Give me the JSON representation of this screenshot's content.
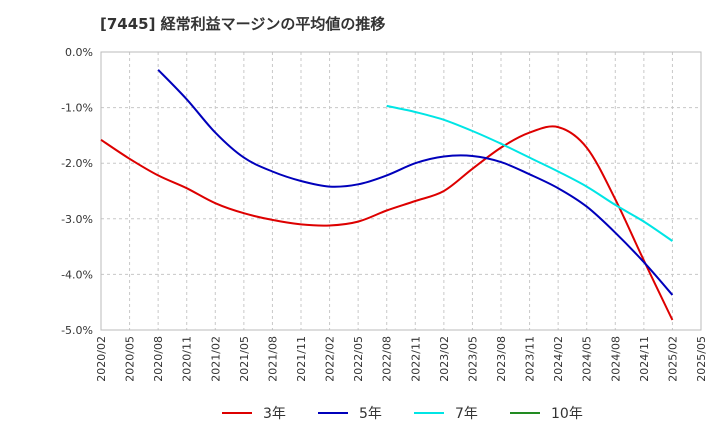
{
  "chart_data": {
    "type": "line",
    "title": "[7445]  経常利益マージンの平均値の推移",
    "xlabel": "",
    "ylabel": "",
    "x_ticks": [
      "2020/02",
      "2020/05",
      "2020/08",
      "2020/11",
      "2021/02",
      "2021/05",
      "2021/08",
      "2021/11",
      "2022/02",
      "2022/05",
      "2022/08",
      "2022/11",
      "2023/02",
      "2023/05",
      "2023/08",
      "2023/11",
      "2024/02",
      "2024/05",
      "2024/08",
      "2024/11",
      "2025/02",
      "2025/05"
    ],
    "y_ticks": [
      "0.0%",
      "-1.0%",
      "-2.0%",
      "-3.0%",
      "-4.0%",
      "-5.0%"
    ],
    "ylim": [
      -5.0,
      0.0
    ],
    "grid": "horizontal dashed",
    "legend_position": "bottom",
    "series": [
      {
        "name": "3年",
        "color": "#dd0000",
        "points": [
          [
            0,
            -1.58
          ],
          [
            1,
            -1.92
          ],
          [
            2,
            -2.22
          ],
          [
            3,
            -2.45
          ],
          [
            4,
            -2.72
          ],
          [
            5,
            -2.9
          ],
          [
            6,
            -3.02
          ],
          [
            7,
            -3.1
          ],
          [
            8,
            -3.12
          ],
          [
            9,
            -3.05
          ],
          [
            10,
            -2.85
          ],
          [
            11,
            -2.68
          ],
          [
            12,
            -2.5
          ],
          [
            13,
            -2.1
          ],
          [
            14,
            -1.72
          ],
          [
            15,
            -1.45
          ],
          [
            16,
            -1.35
          ],
          [
            17,
            -1.72
          ],
          [
            18,
            -2.65
          ],
          [
            19,
            -3.75
          ],
          [
            20,
            -4.82
          ]
        ]
      },
      {
        "name": "5年",
        "color": "#0000bb",
        "points": [
          [
            2,
            -0.32
          ],
          [
            3,
            -0.85
          ],
          [
            4,
            -1.45
          ],
          [
            5,
            -1.9
          ],
          [
            6,
            -2.15
          ],
          [
            7,
            -2.32
          ],
          [
            8,
            -2.42
          ],
          [
            9,
            -2.38
          ],
          [
            10,
            -2.22
          ],
          [
            11,
            -2.0
          ],
          [
            12,
            -1.88
          ],
          [
            13,
            -1.87
          ],
          [
            14,
            -1.98
          ],
          [
            15,
            -2.2
          ],
          [
            16,
            -2.45
          ],
          [
            17,
            -2.78
          ],
          [
            18,
            -3.25
          ],
          [
            19,
            -3.78
          ],
          [
            20,
            -4.37
          ]
        ]
      },
      {
        "name": "7年",
        "color": "#00e5e5",
        "points": [
          [
            10,
            -0.97
          ],
          [
            11,
            -1.08
          ],
          [
            12,
            -1.22
          ],
          [
            13,
            -1.42
          ],
          [
            14,
            -1.65
          ],
          [
            15,
            -1.9
          ],
          [
            16,
            -2.15
          ],
          [
            17,
            -2.42
          ],
          [
            18,
            -2.75
          ],
          [
            19,
            -3.05
          ],
          [
            20,
            -3.4
          ]
        ]
      },
      {
        "name": "10年",
        "color": "#228b22",
        "points": []
      }
    ]
  }
}
